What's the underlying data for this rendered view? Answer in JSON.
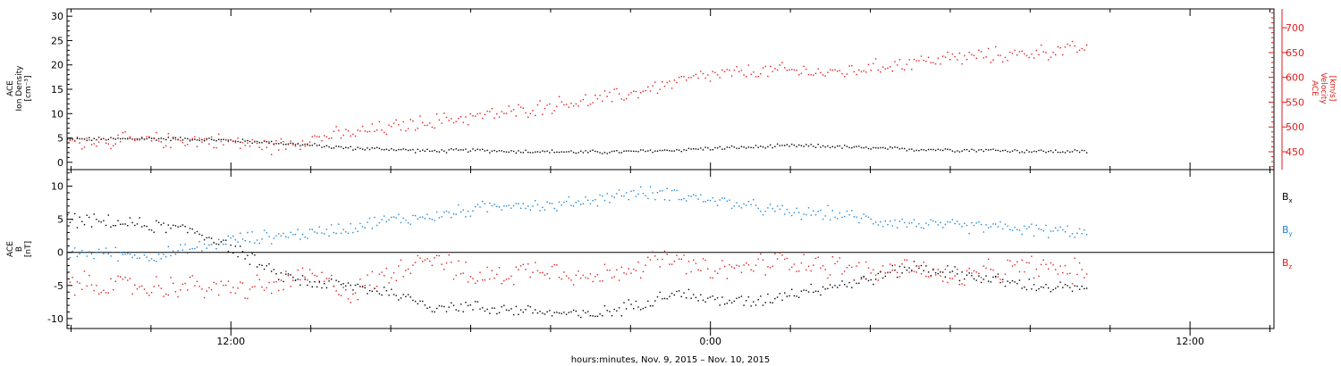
{
  "colors": {
    "black": "#000000",
    "red": "#e11b1b",
    "blue": "#1c86d6"
  },
  "xlabel": "hours:minutes, Nov.  9, 2015 – Nov. 10, 2015",
  "x_axis": {
    "range_hours": [
      -4.1,
      26.1
    ],
    "data_end_hours": 21.4,
    "major_ticks": [
      {
        "hour": 0,
        "label": "12:00"
      },
      {
        "hour": 12,
        "label": "0:00"
      },
      {
        "hour": 24,
        "label": "12:00"
      }
    ],
    "minor_tick_step_hours": 2
  },
  "chart_data": [
    {
      "type": "scatter",
      "panel": "top",
      "ylabel_left": [
        "ACE",
        "Ion Density",
        "[cm⁻³]"
      ],
      "ylabel_right": [
        "ACE",
        "Velocity",
        "[km/s]"
      ],
      "ylim_left": [
        -1.5,
        31.5
      ],
      "ylim_right": [
        414,
        738
      ],
      "yticks_left": [
        0,
        5,
        10,
        15,
        20,
        25,
        30
      ],
      "yticks_right": [
        450,
        500,
        550,
        600,
        650,
        700
      ],
      "series": [
        {
          "axis": "left",
          "color": "black",
          "points": [
            [
              -4.1,
              4.8
            ],
            [
              -3,
              4.9
            ],
            [
              -2,
              5.0
            ],
            [
              -1,
              4.9
            ],
            [
              0,
              4.6
            ],
            [
              1,
              4.2
            ],
            [
              2,
              3.6
            ],
            [
              3,
              3.0
            ],
            [
              4,
              2.8
            ],
            [
              5,
              2.4
            ],
            [
              6,
              2.6
            ],
            [
              7,
              2.4
            ],
            [
              8,
              2.3
            ],
            [
              9,
              2.2
            ],
            [
              10,
              2.3
            ],
            [
              11,
              2.6
            ],
            [
              12,
              3.0
            ],
            [
              13,
              3.2
            ],
            [
              14,
              3.5
            ],
            [
              15,
              3.4
            ],
            [
              16,
              3.0
            ],
            [
              17,
              2.8
            ],
            [
              18,
              2.7
            ],
            [
              19,
              2.6
            ],
            [
              20,
              2.4
            ],
            [
              21.4,
              2.3
            ]
          ]
        },
        {
          "axis": "right",
          "color": "red",
          "points": [
            [
              -4.1,
              472
            ],
            [
              -3,
              473
            ],
            [
              -2,
              474
            ],
            [
              -1,
              475
            ],
            [
              0,
              471
            ],
            [
              1,
              462
            ],
            [
              2,
              478
            ],
            [
              3,
              488
            ],
            [
              4,
              500
            ],
            [
              5,
              512
            ],
            [
              6,
              522
            ],
            [
              7,
              530
            ],
            [
              8,
              545
            ],
            [
              9,
              554
            ],
            [
              10,
              568
            ],
            [
              11,
              590
            ],
            [
              12,
              605
            ],
            [
              13,
              612
            ],
            [
              14,
              615
            ],
            [
              15,
              610
            ],
            [
              16,
              620
            ],
            [
              17,
              632
            ],
            [
              18,
              640
            ],
            [
              19,
              645
            ],
            [
              20,
              650
            ],
            [
              21.4,
              660
            ]
          ]
        }
      ]
    },
    {
      "type": "scatter",
      "panel": "bottom",
      "ylabel_left": [
        "ACE",
        "B",
        "[nT]"
      ],
      "ylim": [
        -11.5,
        12.5
      ],
      "yticks": [
        -10,
        -5,
        0,
        5,
        10
      ],
      "legend_position": "right",
      "series": [
        {
          "name": "B",
          "subscript": "x",
          "color": "black",
          "points": [
            [
              -4.1,
              5
            ],
            [
              -3,
              4.6
            ],
            [
              -2,
              4.1
            ],
            [
              -1,
              3.5
            ],
            [
              0,
              1
            ],
            [
              1,
              -3
            ],
            [
              2,
              -4.5
            ],
            [
              3,
              -5
            ],
            [
              4,
              -6
            ],
            [
              5,
              -8
            ],
            [
              6,
              -8.2
            ],
            [
              7,
              -8.5
            ],
            [
              8,
              -9
            ],
            [
              9,
              -9.5
            ],
            [
              10,
              -8
            ],
            [
              11,
              -6
            ],
            [
              12,
              -7
            ],
            [
              13,
              -7.5
            ],
            [
              14,
              -6
            ],
            [
              15,
              -5
            ],
            [
              16,
              -4
            ],
            [
              17,
              -2
            ],
            [
              18,
              -3
            ],
            [
              19,
              -4
            ],
            [
              20,
              -5
            ],
            [
              21.4,
              -5.5
            ]
          ]
        },
        {
          "name": "B",
          "subscript": "y",
          "color": "blue",
          "points": [
            [
              -4.1,
              0
            ],
            [
              -3,
              0
            ],
            [
              -2,
              -0.5
            ],
            [
              -1,
              0.5
            ],
            [
              0,
              2
            ],
            [
              1,
              2.5
            ],
            [
              2,
              3
            ],
            [
              3,
              4
            ],
            [
              4,
              5
            ],
            [
              5,
              5.5
            ],
            [
              6,
              6.5
            ],
            [
              7,
              7.5
            ],
            [
              8,
              7
            ],
            [
              9,
              8
            ],
            [
              10,
              9
            ],
            [
              11,
              9
            ],
            [
              12,
              8
            ],
            [
              13,
              7
            ],
            [
              14,
              6
            ],
            [
              15,
              6
            ],
            [
              16,
              5
            ],
            [
              17,
              4.5
            ],
            [
              18,
              4
            ],
            [
              19,
              4
            ],
            [
              20,
              3.5
            ],
            [
              21.4,
              3
            ]
          ]
        },
        {
          "name": "B",
          "subscript": "z",
          "color": "red",
          "points": [
            [
              -4.1,
              -4.5
            ],
            [
              -3,
              -5
            ],
            [
              -2,
              -5.2
            ],
            [
              -1,
              -5
            ],
            [
              0,
              -5.5
            ],
            [
              1,
              -5
            ],
            [
              2,
              -3.5
            ],
            [
              3,
              -6
            ],
            [
              4,
              -3
            ],
            [
              5,
              0
            ],
            [
              6,
              -4
            ],
            [
              7,
              -3
            ],
            [
              8,
              -2
            ],
            [
              9,
              -4
            ],
            [
              10,
              -2
            ],
            [
              11,
              -1
            ],
            [
              12,
              -3
            ],
            [
              13,
              -2
            ],
            [
              14,
              -1
            ],
            [
              15,
              -2
            ],
            [
              16,
              -3
            ],
            [
              17,
              -2
            ],
            [
              18,
              -4
            ],
            [
              19,
              -3
            ],
            [
              20,
              -2
            ],
            [
              21.4,
              -3
            ]
          ]
        }
      ]
    }
  ]
}
